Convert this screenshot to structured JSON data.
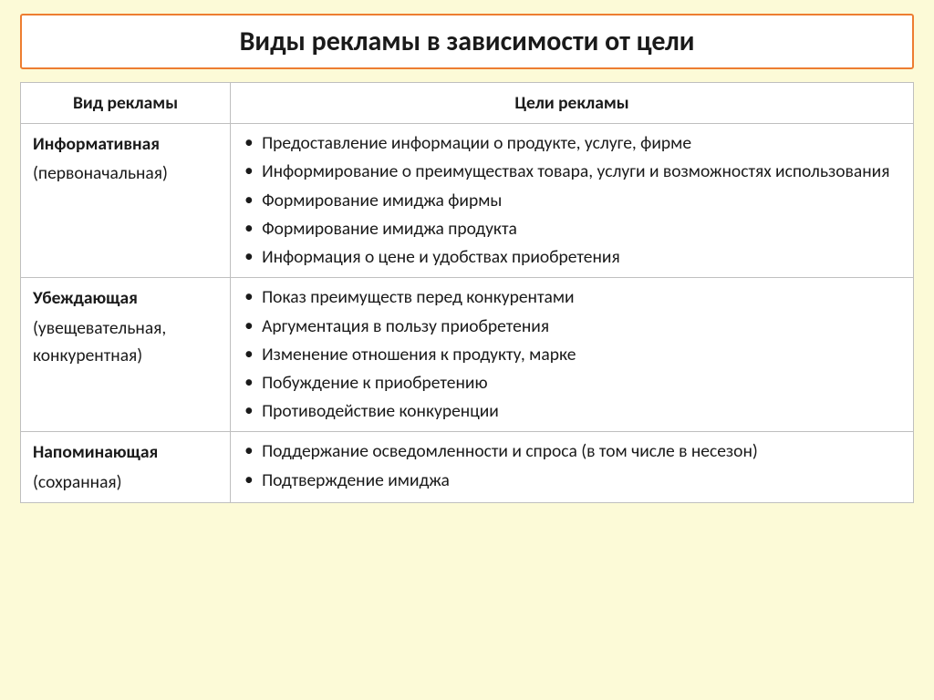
{
  "colors": {
    "slide_bg": "#fcfad7",
    "title_border": "#ed7d31",
    "title_bg": "#ffffff",
    "title_text": "#1a1a1a",
    "table_border": "#bfbfbf",
    "text_color": "#1a1a1a",
    "cell_bg": "#ffffff"
  },
  "fonts": {
    "title_size": 30,
    "cell_size": 19.5
  },
  "layout": {
    "col_type_width_pct": 23.5,
    "col_goals_width_pct": 76.5
  },
  "title": "Виды рекламы в зависимости от цели",
  "table": {
    "headers": {
      "type": "Вид рекламы",
      "goals": "Цели рекламы"
    },
    "rows": [
      {
        "type_bold": "Информативная",
        "type_sub": "(первоначальная)",
        "goals": [
          "Предоставление информации о продукте, услуге, фирме",
          "Информирование о преимуществах товара, услуги и возможностях использования",
          "Формирование имиджа фирмы",
          "Формирование имиджа продукта",
          "Информация о цене и удобствах приобретения"
        ],
        "justify_indices": [
          0
        ]
      },
      {
        "type_bold": "Убеждающая",
        "type_sub": "(увещевательная, конкурентная)",
        "goals": [
          "Показ преимуществ перед конкурентами",
          "Аргументация в пользу приобретения",
          "Изменение отношения к продукту, марке",
          "Побуждение к приобретению",
          "Противодействие конкуренции"
        ],
        "justify_indices": []
      },
      {
        "type_bold": "Напоминающая",
        "type_sub": "(сохранная)",
        "goals": [
          "Поддержание осведомленности и спроса (в том числе в несезон)",
          "Подтверждение имиджа"
        ],
        "justify_indices": [
          0
        ]
      }
    ]
  }
}
